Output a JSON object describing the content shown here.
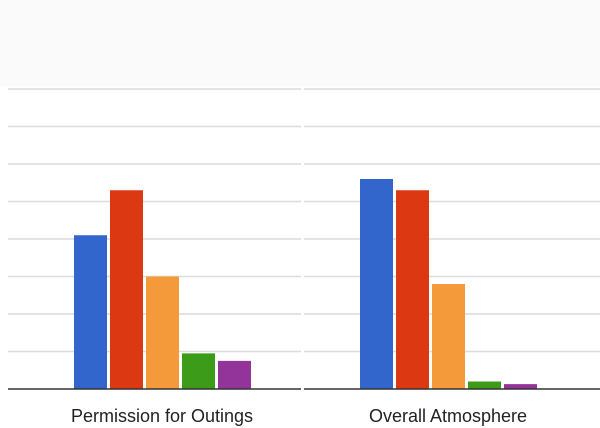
{
  "chart_data": {
    "type": "bar",
    "title": "",
    "xlabel": "",
    "ylabel": "",
    "ylim": [
      0,
      8
    ],
    "grid": true,
    "categories": [
      "Permission for Outings",
      "Overall Atmosphere"
    ],
    "series": [
      {
        "color": "#3366cc",
        "values": [
          4.1,
          5.6
        ]
      },
      {
        "color": "#dc3912",
        "values": [
          5.3,
          5.3
        ]
      },
      {
        "color": "#f59a3a",
        "values": [
          3.0,
          2.8
        ]
      },
      {
        "color": "#3d9b1a",
        "values": [
          0.95,
          0.2
        ]
      },
      {
        "color": "#92349a",
        "values": [
          0.75,
          0.13
        ]
      }
    ]
  }
}
